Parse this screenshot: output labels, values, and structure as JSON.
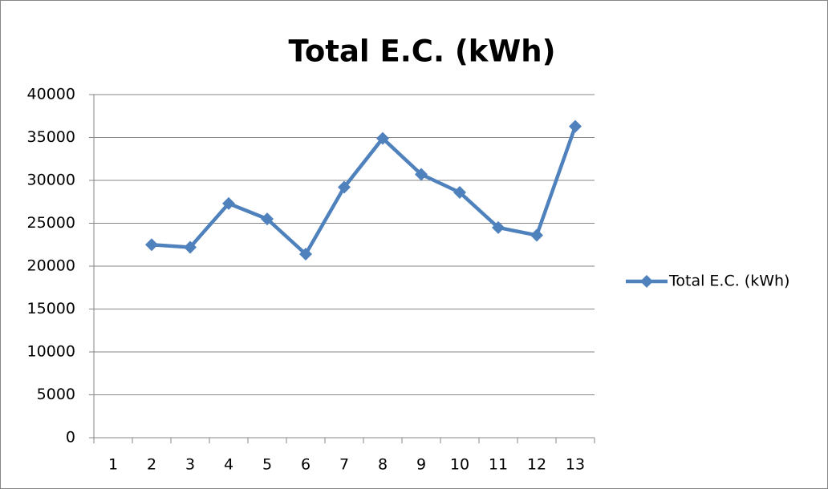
{
  "chart_data": {
    "type": "line",
    "title": "Total E.C. (kWh)",
    "categories": [
      "1",
      "2",
      "3",
      "4",
      "5",
      "6",
      "7",
      "8",
      "9",
      "10",
      "11",
      "12",
      "13"
    ],
    "series": [
      {
        "name": "Total E.C. (kWh)",
        "color": "#4f81bd",
        "values": [
          null,
          22500,
          22200,
          27300,
          25500,
          21400,
          29200,
          34900,
          30700,
          28600,
          24500,
          23600,
          36300
        ]
      }
    ],
    "ylim": [
      0,
      40000
    ],
    "yticks": [
      0,
      5000,
      10000,
      15000,
      20000,
      25000,
      30000,
      35000,
      40000
    ],
    "grid": true,
    "legend": "right"
  }
}
